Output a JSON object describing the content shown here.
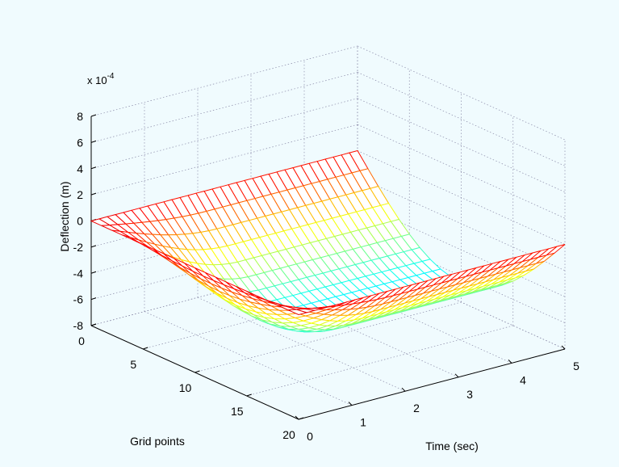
{
  "chart_data": {
    "type": "surface",
    "title": "",
    "xlabel": "Time (sec)",
    "ylabel": "Grid points",
    "zlabel": "Deflection (m)",
    "z_exponent_label": "x 10",
    "z_exponent_power": "-4",
    "xlim": [
      0,
      5
    ],
    "ylim": [
      0,
      20
    ],
    "zlim": [
      -8,
      8
    ],
    "x_ticks": [
      0,
      1,
      2,
      3,
      4,
      5
    ],
    "y_ticks": [
      0,
      5,
      10,
      15,
      20
    ],
    "z_ticks": [
      8,
      6,
      4,
      2,
      0,
      -2,
      -4,
      -6,
      -8
    ],
    "grid": true,
    "colormap": "jet",
    "background_color": "#f0fbfe",
    "description_values": {
      "time_samples": 34,
      "grid_point_samples": 20,
      "max_deflection": -6.5,
      "profile": "half-sine over grid points, growing from 0 at t=0 to max near t=2 and staying constant"
    }
  }
}
